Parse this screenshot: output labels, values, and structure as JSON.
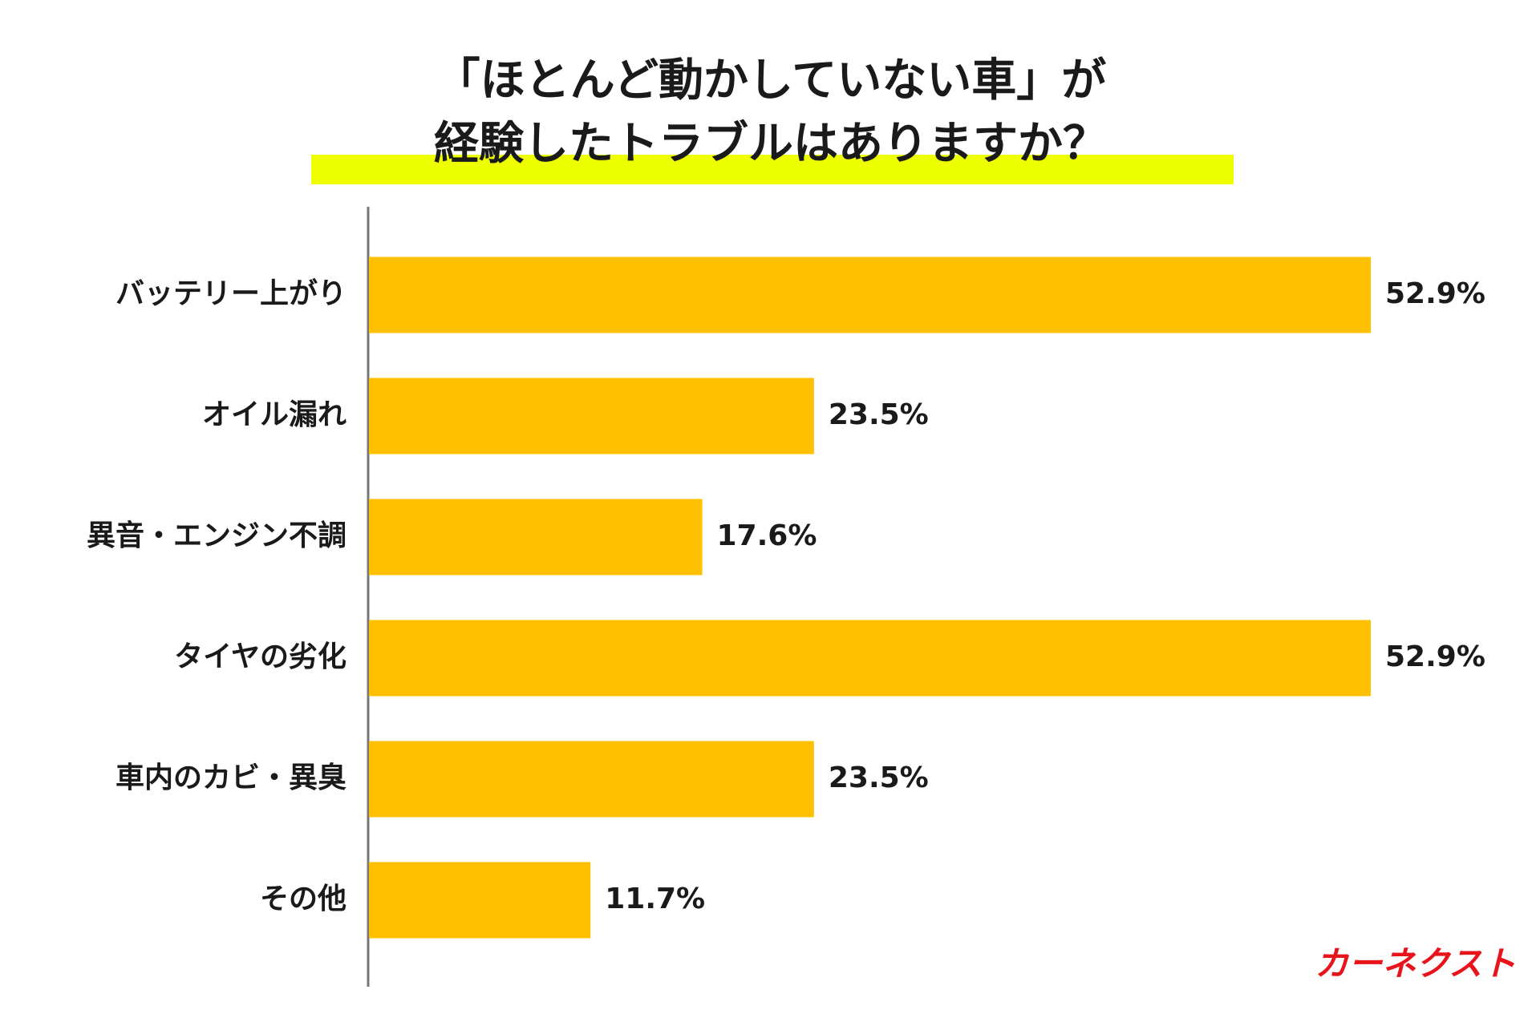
{
  "chart_data": {
    "type": "bar",
    "orientation": "horizontal",
    "title": [
      "「ほとんど動かしていない車」が",
      "経験したトラブルはありますか？"
    ],
    "categories": [
      "バッテリー上がり",
      "オイル漏れ",
      "異音・エンジン不調",
      "タイヤの劣化",
      "車内のカビ・異臭",
      "その他"
    ],
    "values": [
      52.9,
      23.5,
      17.6,
      52.9,
      23.5,
      11.7
    ],
    "value_labels": [
      "52.9%",
      "23.5%",
      "17.6%",
      "52.9%",
      "23.5%",
      "11.7%"
    ],
    "color": "#FFC000",
    "logo": "カーネクスト"
  }
}
